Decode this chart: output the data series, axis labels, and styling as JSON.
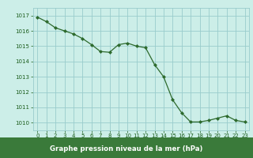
{
  "x": [
    0,
    1,
    2,
    3,
    4,
    5,
    6,
    7,
    8,
    9,
    10,
    11,
    12,
    13,
    14,
    15,
    16,
    17,
    18,
    19,
    20,
    21,
    22,
    23
  ],
  "y": [
    1016.9,
    1016.6,
    1016.2,
    1016.0,
    1015.8,
    1015.5,
    1015.1,
    1014.65,
    1014.6,
    1015.1,
    1015.2,
    1015.0,
    1014.9,
    1013.8,
    1013.0,
    1011.5,
    1010.65,
    1010.05,
    1010.05,
    1010.15,
    1010.3,
    1010.45,
    1010.15,
    1010.05
  ],
  "ylim": [
    1009.5,
    1017.5
  ],
  "xlim": [
    -0.5,
    23.5
  ],
  "yticks": [
    1010,
    1011,
    1012,
    1013,
    1014,
    1015,
    1016,
    1017
  ],
  "xticks": [
    0,
    1,
    2,
    3,
    4,
    5,
    6,
    7,
    8,
    9,
    10,
    11,
    12,
    13,
    14,
    15,
    16,
    17,
    18,
    19,
    20,
    21,
    22,
    23
  ],
  "line_color": "#2d6a2d",
  "marker_color": "#2d6a2d",
  "bg_color": "#cceee8",
  "grid_color": "#99cccc",
  "xlabel": "Graphe pression niveau de la mer (hPa)",
  "xlabel_color": "white",
  "xlabel_bg": "#3a7a3a",
  "tick_label_color": "#1a5c1a",
  "figsize": [
    3.2,
    2.0
  ],
  "dpi": 100
}
